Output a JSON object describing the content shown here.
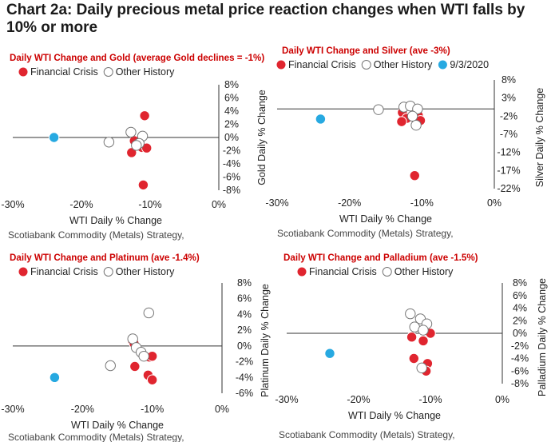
{
  "title": "Chart 2a:  Daily precious metal price reaction changes when WTI falls by 10% or more",
  "colors": {
    "panel_title": "#cc0000",
    "financial_crisis": "#e0252f",
    "other_history": "#ffffff",
    "highlight": "#27a9e1",
    "axis": "#333333"
  },
  "chart_data": [
    {
      "type": "scatter",
      "title": "Daily WTI Change and Gold (average Gold declines =  -1%)",
      "xlabel": "WTI Daily % Change",
      "ylabel": "Gold Daily % Change",
      "source": "Scotiabank Commodity (Metals) Strategy,",
      "xlim": [
        -30,
        0
      ],
      "ylim": [
        -8,
        8
      ],
      "x_ticks": [
        "-30%",
        "-20%",
        "-10%",
        "0%"
      ],
      "y_ticks": [
        "8%",
        "6%",
        "4%",
        "2%",
        "0%",
        "-2%",
        "-4%",
        "-6%",
        "-8%"
      ],
      "legend": [
        "Financial Crisis",
        "Other History"
      ],
      "series": [
        {
          "name": "Financial Crisis",
          "points": [
            [
              -10.8,
              3.3
            ],
            [
              -12.3,
              -0.5
            ],
            [
              -11.2,
              -1.5
            ],
            [
              -10.5,
              -1.6
            ],
            [
              -12.7,
              -2.3
            ],
            [
              -11.0,
              -7.2
            ]
          ]
        },
        {
          "name": "Other History",
          "points": [
            [
              -12.8,
              0.8
            ],
            [
              -11.1,
              0.2
            ],
            [
              -16.0,
              -0.7
            ],
            [
              -11.6,
              -0.9
            ],
            [
              -12.0,
              -1.2
            ]
          ]
        },
        {
          "name": "9/3/2020",
          "points": [
            [
              -24.0,
              0.0
            ]
          ]
        }
      ]
    },
    {
      "type": "scatter",
      "title": "Daily WTI Change and Silver (ave -3%)",
      "xlabel": "WTI Daily % Change",
      "ylabel": "Silver Daily % Change",
      "source": "Scotiabank Commodity (Metals) Strategy,",
      "xlim": [
        -30,
        0
      ],
      "ylim": [
        -22,
        8
      ],
      "x_ticks": [
        "-30%",
        "-20%",
        "-10%",
        "0%"
      ],
      "y_ticks": [
        "8%",
        "3%",
        "-2%",
        "-7%",
        "-12%",
        "-17%",
        "-22%"
      ],
      "legend": [
        "Financial Crisis",
        "Other History",
        "9/3/2020"
      ],
      "series": [
        {
          "name": "Financial Crisis",
          "points": [
            [
              -12.7,
              -1.0
            ],
            [
              -11.0,
              -1.3
            ],
            [
              -10.5,
              -1.8
            ],
            [
              -12.1,
              -2.6
            ],
            [
              -10.2,
              -3.2
            ],
            [
              -12.8,
              -3.5
            ],
            [
              -11.0,
              -18.4
            ]
          ]
        },
        {
          "name": "Other History",
          "points": [
            [
              -12.5,
              0.5
            ],
            [
              -11.6,
              0.8
            ],
            [
              -10.6,
              0.0
            ],
            [
              -16.0,
              -0.2
            ],
            [
              -11.3,
              -2.0
            ],
            [
              -10.8,
              -4.5
            ]
          ]
        },
        {
          "name": "9/3/2020",
          "points": [
            [
              -24.0,
              -2.8
            ]
          ]
        }
      ]
    },
    {
      "type": "scatter",
      "title": "Daily WTI Change and Platinum (ave -1.4%)",
      "xlabel": "WTI Daily % Change",
      "ylabel": "Platinum Daily % Change",
      "source": "Scotiabank Commodity (Metals) Strategy,",
      "xlim": [
        -30,
        0
      ],
      "ylim": [
        -6,
        8
      ],
      "x_ticks": [
        "-30%",
        "-20%",
        "-10%",
        "0%"
      ],
      "y_ticks": [
        "8%",
        "6%",
        "4%",
        "2%",
        "0%",
        "-2%",
        "-4%",
        "-6%"
      ],
      "legend": [
        "Financial Crisis",
        "Other History"
      ],
      "series": [
        {
          "name": "Financial Crisis",
          "points": [
            [
              -12.8,
              0.6
            ],
            [
              -12.6,
              0.3
            ],
            [
              -10.4,
              -1.4
            ],
            [
              -10.0,
              -1.3
            ],
            [
              -12.5,
              -2.6
            ],
            [
              -10.6,
              -3.7
            ],
            [
              -10.0,
              -4.3
            ]
          ]
        },
        {
          "name": "Other History",
          "points": [
            [
              -10.5,
              4.2
            ],
            [
              -12.8,
              0.9
            ],
            [
              -12.3,
              -0.2
            ],
            [
              -11.6,
              -0.8
            ],
            [
              -11.2,
              -1.3
            ],
            [
              -16.0,
              -2.5
            ]
          ]
        },
        {
          "name": "9/3/2020",
          "points": [
            [
              -24.0,
              -4.0
            ]
          ]
        }
      ]
    },
    {
      "type": "scatter",
      "title": "Daily WTI Change and Palladium (ave -1.5%)",
      "xlabel": "WTI Daily % Change",
      "ylabel": "Palladium Daily % Change",
      "source": "Scotiabank Commodity (Metals) Strategy,",
      "xlim": [
        -30,
        0
      ],
      "ylim": [
        -8,
        8
      ],
      "x_ticks": [
        "-30%",
        "-20%",
        "-10%",
        "0%"
      ],
      "y_ticks": [
        "8%",
        "6%",
        "4%",
        "2%",
        "0%",
        "-2%",
        "-4%",
        "-6%",
        "-8%"
      ],
      "legend": [
        "Financial Crisis",
        "Other History"
      ],
      "series": [
        {
          "name": "Financial Crisis",
          "points": [
            [
              -10.0,
              0.0
            ],
            [
              -12.6,
              -0.6
            ],
            [
              -11.0,
              -1.2
            ],
            [
              -12.3,
              -4.0
            ],
            [
              -10.4,
              -4.8
            ],
            [
              -10.6,
              -6.0
            ]
          ]
        },
        {
          "name": "Other History",
          "points": [
            [
              -12.8,
              3.1
            ],
            [
              -11.4,
              2.3
            ],
            [
              -10.5,
              1.5
            ],
            [
              -12.2,
              1.0
            ],
            [
              -11.0,
              0.5
            ],
            [
              -11.2,
              -5.5
            ]
          ]
        },
        {
          "name": "9/3/2020",
          "points": [
            [
              -24.0,
              -3.2
            ]
          ]
        }
      ]
    }
  ]
}
